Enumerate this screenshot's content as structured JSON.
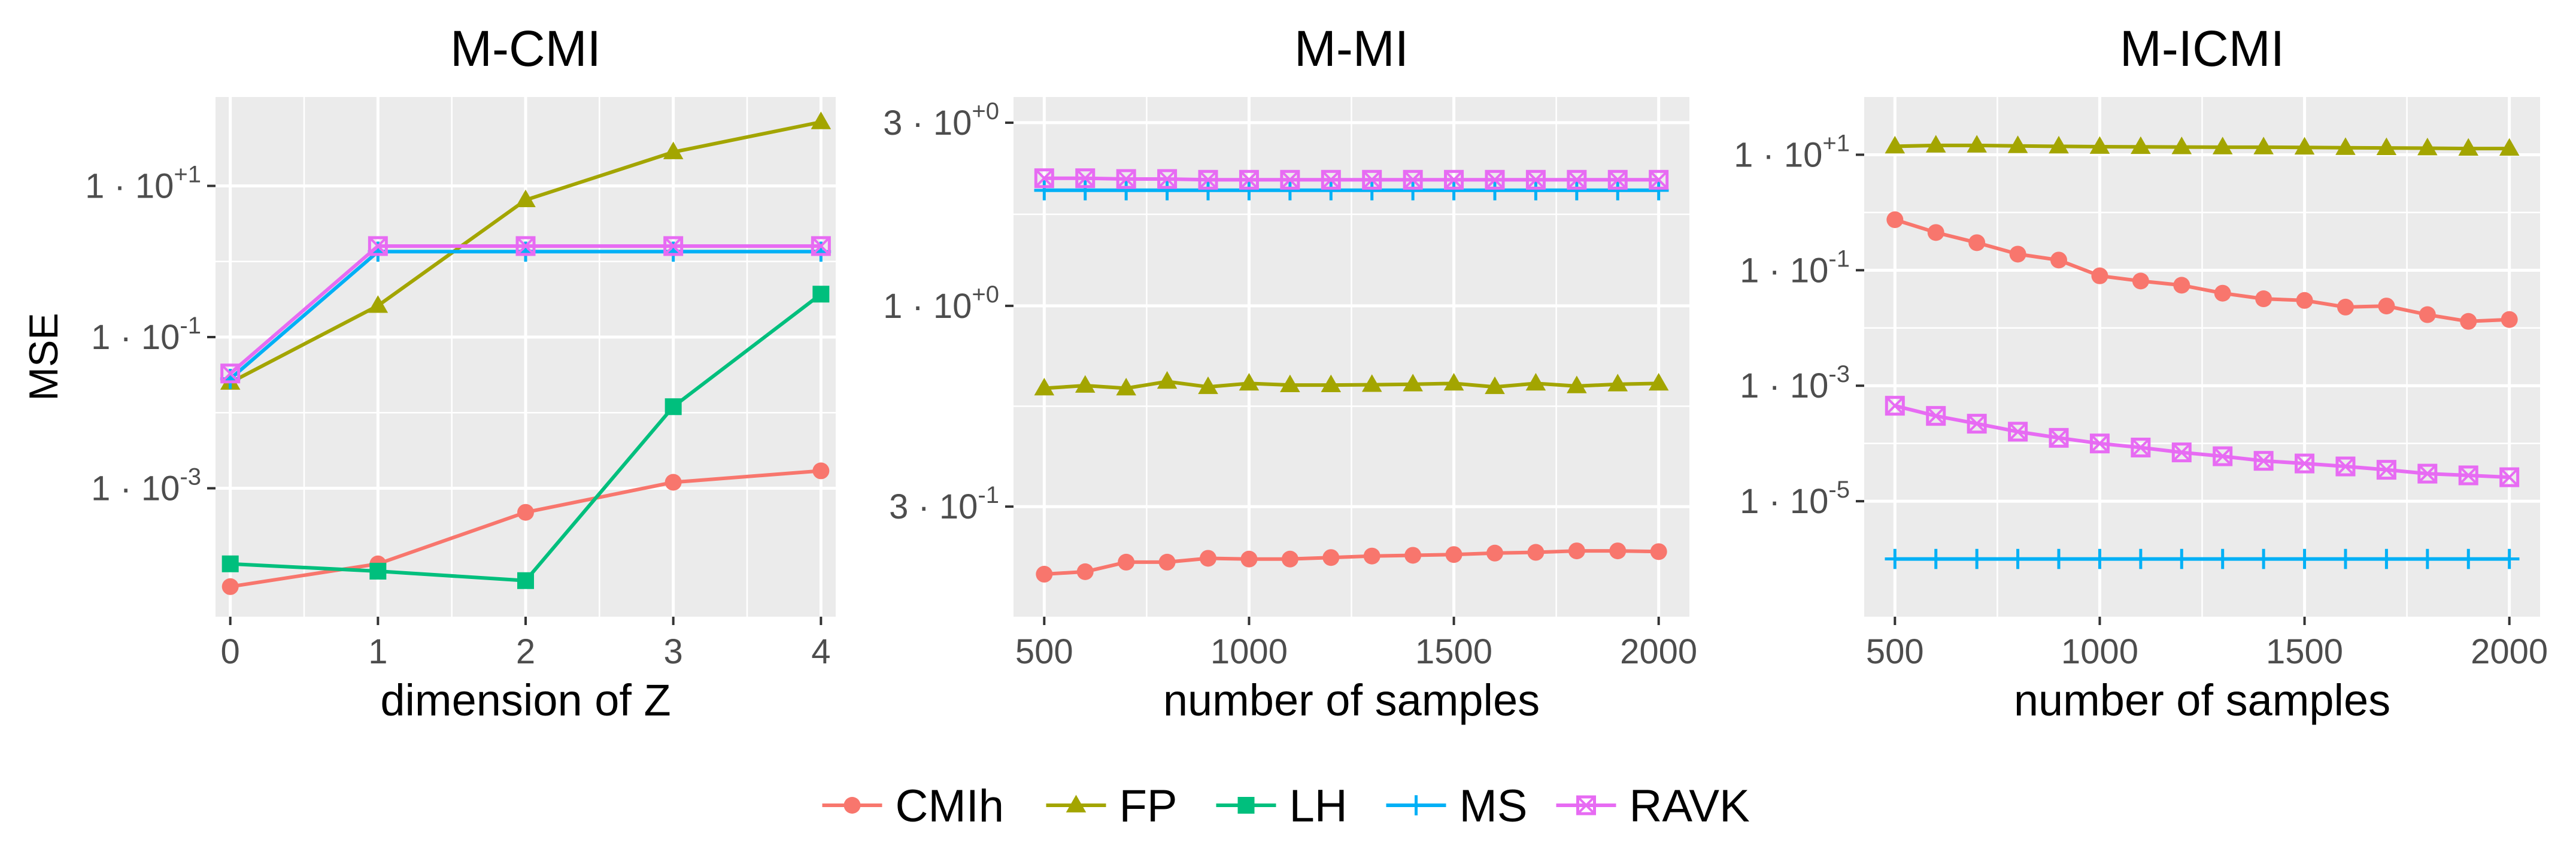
{
  "chart_data": [
    {
      "type": "line",
      "title": "M-CMI",
      "xlabel": "dimension of Z",
      "ylabel": "MSE",
      "yscale": "log",
      "xlim": [
        -0.1,
        4.1
      ],
      "ylim": [
        2e-05,
        150
      ],
      "xticks": [
        0,
        1,
        2,
        3,
        4
      ],
      "xtick_labels": [
        "0",
        "1",
        "2",
        "3",
        "4"
      ],
      "yticks": [
        {
          "value": 0.001,
          "mantissa": "1",
          "exp": "-3"
        },
        {
          "value": 0.1,
          "mantissa": "1",
          "exp": "-1"
        },
        {
          "value": 10,
          "mantissa": "1",
          "exp": "+1"
        }
      ],
      "x": [
        0,
        1,
        2,
        3,
        4
      ],
      "series": [
        {
          "name": "CMIh",
          "values": [
            5e-05,
            0.0001,
            0.00048,
            0.0012,
            0.0017
          ]
        },
        {
          "name": "FP",
          "values": [
            0.025,
            0.26,
            6.5,
            28,
            70
          ]
        },
        {
          "name": "LH",
          "values": [
            0.0001,
            8e-05,
            6e-05,
            0.012,
            0.37
          ]
        },
        {
          "name": "MS",
          "values": [
            0.028,
            1.35,
            1.35,
            1.35,
            1.35
          ]
        },
        {
          "name": "RAVK",
          "values": [
            0.033,
            1.6,
            1.6,
            1.6,
            1.6
          ]
        }
      ]
    },
    {
      "type": "line",
      "title": "M-MI",
      "xlabel": "number of samples",
      "ylabel": "",
      "yscale": "log",
      "xlim": [
        425,
        2075
      ],
      "ylim": [
        0.155,
        3.5
      ],
      "xticks": [
        500,
        1000,
        1500,
        2000
      ],
      "xtick_labels": [
        "500",
        "1000",
        "1500",
        "2000"
      ],
      "yticks": [
        {
          "value": 0.3,
          "mantissa": "3",
          "exp": "-1"
        },
        {
          "value": 1,
          "mantissa": "1",
          "exp": "+0"
        },
        {
          "value": 3,
          "mantissa": "3",
          "exp": "+0"
        }
      ],
      "x": [
        500,
        600,
        700,
        800,
        900,
        1000,
        1100,
        1200,
        1300,
        1400,
        1500,
        1600,
        1700,
        1800,
        1900,
        2000
      ],
      "series": [
        {
          "name": "CMIh",
          "values": [
            0.2,
            0.203,
            0.215,
            0.215,
            0.22,
            0.219,
            0.219,
            0.221,
            0.223,
            0.224,
            0.225,
            0.227,
            0.228,
            0.23,
            0.23,
            0.229
          ]
        },
        {
          "name": "FP",
          "values": [
            0.61,
            0.62,
            0.61,
            0.635,
            0.615,
            0.628,
            0.622,
            0.622,
            0.623,
            0.625,
            0.628,
            0.615,
            0.628,
            0.618,
            0.625,
            0.628
          ]
        },
        {
          "name": "MS",
          "values": [
            2.0,
            2.0,
            2.0,
            2.0,
            2.0,
            2.0,
            2.0,
            2.0,
            2.0,
            2.0,
            2.0,
            2.0,
            2.0,
            2.0,
            2.0,
            2.0
          ]
        },
        {
          "name": "RAVK",
          "values": [
            2.15,
            2.15,
            2.14,
            2.14,
            2.13,
            2.13,
            2.13,
            2.13,
            2.13,
            2.13,
            2.13,
            2.13,
            2.13,
            2.13,
            2.13,
            2.13
          ]
        }
      ]
    },
    {
      "type": "line",
      "title": "M-ICMI",
      "xlabel": "number of samples",
      "ylabel": "",
      "yscale": "log",
      "xlim": [
        425,
        2075
      ],
      "ylim": [
        1e-07,
        100
      ],
      "xticks": [
        500,
        1000,
        1500,
        2000
      ],
      "xtick_labels": [
        "500",
        "1000",
        "1500",
        "2000"
      ],
      "yticks": [
        {
          "value": 1e-05,
          "mantissa": "1",
          "exp": "-5"
        },
        {
          "value": 0.001,
          "mantissa": "1",
          "exp": "-3"
        },
        {
          "value": 0.1,
          "mantissa": "1",
          "exp": "-1"
        },
        {
          "value": 10,
          "mantissa": "1",
          "exp": "+1"
        }
      ],
      "x": [
        500,
        600,
        700,
        800,
        900,
        1000,
        1100,
        1200,
        1300,
        1400,
        1500,
        1600,
        1700,
        1800,
        1900,
        2000
      ],
      "series": [
        {
          "name": "CMIh",
          "values": [
            0.75,
            0.45,
            0.3,
            0.19,
            0.15,
            0.08,
            0.065,
            0.055,
            0.04,
            0.032,
            0.03,
            0.023,
            0.024,
            0.017,
            0.013,
            0.014
          ]
        },
        {
          "name": "FP",
          "values": [
            14,
            14.5,
            14.5,
            14.2,
            14,
            13.8,
            13.7,
            13.6,
            13.5,
            13.5,
            13.4,
            13.2,
            13.1,
            13,
            12.8,
            12.8
          ]
        },
        {
          "name": "MS",
          "values": [
            1e-06,
            1e-06,
            1e-06,
            1e-06,
            1e-06,
            1e-06,
            1e-06,
            1e-06,
            1e-06,
            1e-06,
            1e-06,
            1e-06,
            1e-06,
            1e-06,
            1e-06,
            1e-06
          ]
        },
        {
          "name": "RAVK",
          "values": [
            0.00045,
            0.0003,
            0.00022,
            0.00016,
            0.000125,
            0.0001,
            8.5e-05,
            7e-05,
            6e-05,
            5e-05,
            4.5e-05,
            4e-05,
            3.5e-05,
            3e-05,
            2.8e-05,
            2.6e-05
          ]
        }
      ]
    }
  ],
  "legend": {
    "position": "bottom",
    "items": [
      {
        "name": "CMIh",
        "label": "CMIh",
        "color": "#F8766D",
        "marker": "circle"
      },
      {
        "name": "FP",
        "label": "FP",
        "color": "#A3A500",
        "marker": "triangle"
      },
      {
        "name": "LH",
        "label": "LH",
        "color": "#00BF7D",
        "marker": "square"
      },
      {
        "name": "MS",
        "label": "MS",
        "color": "#00B0F6",
        "marker": "plus"
      },
      {
        "name": "RAVK",
        "label": "RAVK",
        "color": "#E76BF3",
        "marker": "boxed-x"
      }
    ]
  },
  "colors": {
    "panel_bg": "#EBEBEB",
    "grid": "#FFFFFF"
  }
}
